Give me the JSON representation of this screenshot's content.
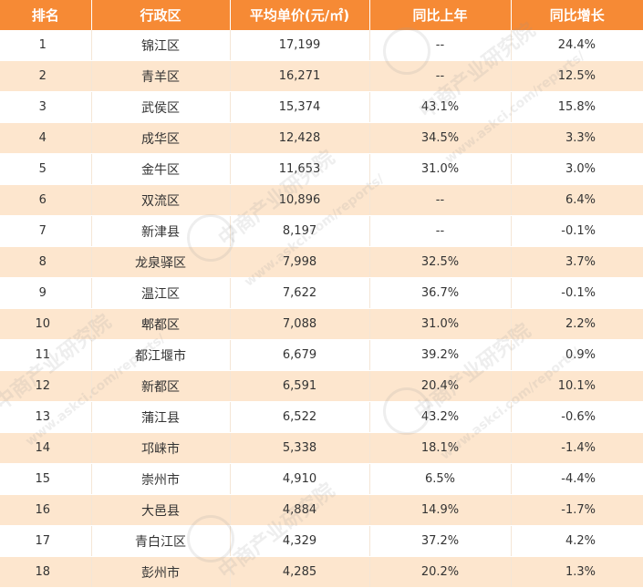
{
  "table": {
    "headers": [
      "排名",
      "行政区",
      "平均单价(元/㎡)",
      "同比上年",
      "同比增长"
    ],
    "rows": [
      {
        "rank": "1",
        "district": "锦江区",
        "price": "17,199",
        "yoy": "--",
        "growth": "24.4%"
      },
      {
        "rank": "2",
        "district": "青羊区",
        "price": "16,271",
        "yoy": "--",
        "growth": "12.5%"
      },
      {
        "rank": "3",
        "district": "武侯区",
        "price": "15,374",
        "yoy": "43.1%",
        "growth": "15.8%"
      },
      {
        "rank": "4",
        "district": "成华区",
        "price": "12,428",
        "yoy": "34.5%",
        "growth": "3.3%"
      },
      {
        "rank": "5",
        "district": "金牛区",
        "price": "11,653",
        "yoy": "31.0%",
        "growth": "3.0%"
      },
      {
        "rank": "6",
        "district": "双流区",
        "price": "10,896",
        "yoy": "--",
        "growth": "6.4%"
      },
      {
        "rank": "7",
        "district": "新津县",
        "price": "8,197",
        "yoy": "--",
        "growth": "-0.1%"
      },
      {
        "rank": "8",
        "district": "龙泉驿区",
        "price": "7,998",
        "yoy": "32.5%",
        "growth": "3.7%"
      },
      {
        "rank": "9",
        "district": "温江区",
        "price": "7,622",
        "yoy": "36.7%",
        "growth": "-0.1%"
      },
      {
        "rank": "10",
        "district": "郫都区",
        "price": "7,088",
        "yoy": "31.0%",
        "growth": "2.2%"
      },
      {
        "rank": "11",
        "district": "都江堰市",
        "price": "6,679",
        "yoy": "39.2%",
        "growth": "0.9%"
      },
      {
        "rank": "12",
        "district": "新都区",
        "price": "6,591",
        "yoy": "20.4%",
        "growth": "10.1%"
      },
      {
        "rank": "13",
        "district": "蒲江县",
        "price": "6,522",
        "yoy": "43.2%",
        "growth": "-0.6%"
      },
      {
        "rank": "14",
        "district": "邛崃市",
        "price": "5,338",
        "yoy": "18.1%",
        "growth": "-1.4%"
      },
      {
        "rank": "15",
        "district": "崇州市",
        "price": "4,910",
        "yoy": "6.5%",
        "growth": "-4.4%"
      },
      {
        "rank": "16",
        "district": "大邑县",
        "price": "4,884",
        "yoy": "14.9%",
        "growth": "-1.7%"
      },
      {
        "rank": "17",
        "district": "青白江区",
        "price": "4,329",
        "yoy": "37.2%",
        "growth": "4.2%"
      },
      {
        "rank": "18",
        "district": "彭州市",
        "price": "4,285",
        "yoy": "20.2%",
        "growth": "1.3%"
      }
    ]
  },
  "watermark": {
    "brand": "中商产业研究院",
    "site": "www.askci.com/reports/"
  }
}
